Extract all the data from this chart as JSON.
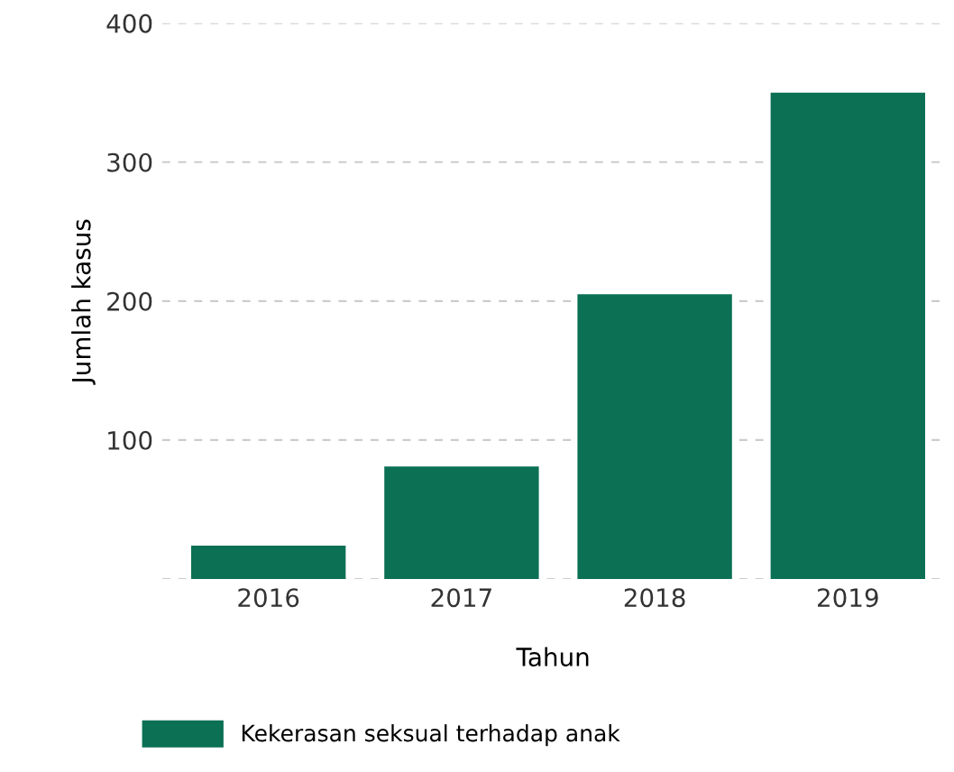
{
  "chart_data": {
    "type": "bar",
    "xlabel": "Tahun",
    "ylabel": "Jumlah kasus",
    "categories": [
      "2016",
      "2017",
      "2018",
      "2019"
    ],
    "series": [
      {
        "name": "Kekerasan seksual terhadap anak",
        "color": "#0b7054",
        "values": [
          24,
          81,
          205,
          350
        ]
      }
    ],
    "ylim": [
      0,
      400
    ],
    "yticks": [
      {
        "value": 0,
        "label": null
      },
      100,
      200,
      300,
      400
    ],
    "grid": "y",
    "legend": "bottom"
  }
}
